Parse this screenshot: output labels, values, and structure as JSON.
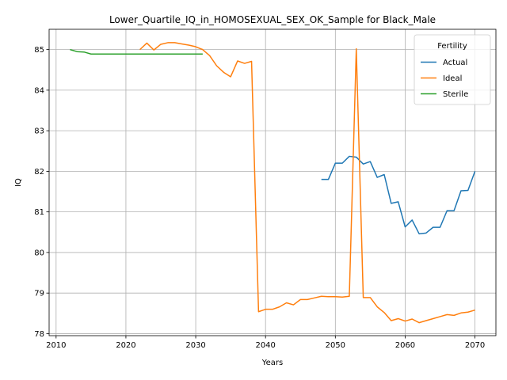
{
  "chart_data": {
    "type": "line",
    "title": "Lower_Quartile_IQ_in_HOMOSEXUAL_SEX_OK_Sample for Black_Male",
    "xlabel": "Years",
    "ylabel": "IQ",
    "xlim": [
      2009,
      2073
    ],
    "ylim": [
      77.95,
      85.5
    ],
    "xticks": [
      2010,
      2020,
      2030,
      2040,
      2050,
      2060,
      2070
    ],
    "yticks": [
      78,
      79,
      80,
      81,
      82,
      83,
      84,
      85
    ],
    "grid": true,
    "legend": {
      "title": "Fertility",
      "position": "top-right"
    },
    "series": [
      {
        "name": "Actual",
        "color": "#1f77b4",
        "x": [
          2048,
          2049,
          2050,
          2051,
          2052,
          2053,
          2054,
          2055,
          2056,
          2057,
          2058,
          2059,
          2060,
          2061,
          2062,
          2063,
          2064,
          2065,
          2066,
          2067,
          2068,
          2069,
          2070
        ],
        "y": [
          81.8,
          81.8,
          82.2,
          82.2,
          82.37,
          82.35,
          82.18,
          82.24,
          81.85,
          81.92,
          81.21,
          81.25,
          80.63,
          80.8,
          80.46,
          80.48,
          80.62,
          80.62,
          81.03,
          81.03,
          81.52,
          81.53,
          82.0
        ]
      },
      {
        "name": "Ideal",
        "color": "#ff7f0e",
        "x": [
          2022,
          2023,
          2024,
          2025,
          2026,
          2027,
          2028,
          2029,
          2030,
          2031,
          2032,
          2033,
          2034,
          2035,
          2036,
          2037,
          2038,
          2039,
          2040,
          2041,
          2042,
          2043,
          2044,
          2045,
          2046,
          2047,
          2048,
          2049,
          2050,
          2051,
          2052,
          2053,
          2054,
          2055,
          2056,
          2057,
          2058,
          2059,
          2060,
          2061,
          2062,
          2063,
          2064,
          2065,
          2066,
          2067,
          2068,
          2069,
          2070
        ],
        "y": [
          85.0,
          85.16,
          84.99,
          85.13,
          85.17,
          85.17,
          85.14,
          85.11,
          85.07,
          85.0,
          84.85,
          84.6,
          84.44,
          84.33,
          84.72,
          84.66,
          84.71,
          78.54,
          78.6,
          78.6,
          78.66,
          78.76,
          78.71,
          78.84,
          78.84,
          78.88,
          78.92,
          78.91,
          78.91,
          78.9,
          78.92,
          85.02,
          78.89,
          78.89,
          78.66,
          78.52,
          78.32,
          78.37,
          78.31,
          78.36,
          78.27,
          78.32,
          78.37,
          78.42,
          78.47,
          78.45,
          78.51,
          78.53,
          78.58
        ]
      },
      {
        "name": "Sterile",
        "color": "#2ca02c",
        "x": [
          2012,
          2013,
          2014,
          2015,
          2016,
          2017,
          2018,
          2019,
          2020,
          2021,
          2022,
          2023,
          2024,
          2025,
          2026,
          2027,
          2028,
          2029,
          2030,
          2031
        ],
        "y": [
          85.0,
          84.95,
          84.94,
          84.89,
          84.89,
          84.89,
          84.89,
          84.89,
          84.89,
          84.89,
          84.89,
          84.89,
          84.89,
          84.89,
          84.89,
          84.89,
          84.89,
          84.89,
          84.89,
          84.89
        ]
      }
    ]
  }
}
